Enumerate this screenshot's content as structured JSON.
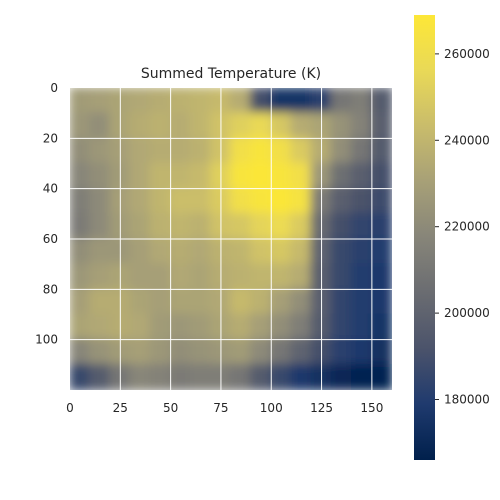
{
  "chart_data": {
    "type": "heatmap",
    "title": "Summed Temperature (K)",
    "xlabel": "",
    "ylabel": "",
    "colormap": "cividis",
    "grid": true,
    "grid_color": "#ffffff",
    "x_range": [
      0,
      160
    ],
    "y_range": [
      0,
      120
    ],
    "y_inverted": true,
    "x_ticks": [
      0,
      25,
      50,
      75,
      100,
      125,
      150
    ],
    "y_ticks": [
      0,
      20,
      40,
      60,
      80,
      100
    ],
    "colorbar": {
      "range": [
        166000,
        269000
      ],
      "ticks": [
        180000,
        200000,
        220000,
        240000,
        260000
      ],
      "tick_labels": [
        "180000",
        "200000",
        "220000",
        "240000",
        "260000"
      ],
      "placement": "right"
    },
    "grid_resolution": {
      "cols": 16,
      "rows": 12,
      "cell_width": 10,
      "cell_height": 10
    },
    "values": [
      [
        228000,
        230000,
        232000,
        234000,
        236000,
        238000,
        240000,
        242000,
        236000,
        190000,
        176000,
        176000,
        182000,
        210000,
        214000,
        196000
      ],
      [
        226000,
        222000,
        232000,
        236000,
        238000,
        236000,
        240000,
        246000,
        252000,
        256000,
        248000,
        236000,
        232000,
        224000,
        216000,
        198000
      ],
      [
        222000,
        226000,
        230000,
        234000,
        236000,
        236000,
        238000,
        246000,
        262000,
        266000,
        262000,
        250000,
        236000,
        222000,
        210000,
        196000
      ],
      [
        218000,
        222000,
        228000,
        234000,
        240000,
        240000,
        242000,
        252000,
        266000,
        268000,
        266000,
        262000,
        226000,
        206000,
        198000,
        190000
      ],
      [
        214000,
        220000,
        230000,
        234000,
        240000,
        244000,
        244000,
        250000,
        262000,
        266000,
        268000,
        264000,
        212000,
        198000,
        192000,
        188000
      ],
      [
        212000,
        220000,
        228000,
        232000,
        238000,
        240000,
        238000,
        246000,
        248000,
        254000,
        258000,
        250000,
        204000,
        190000,
        184000,
        182000
      ],
      [
        222000,
        226000,
        226000,
        230000,
        234000,
        236000,
        234000,
        238000,
        240000,
        246000,
        248000,
        242000,
        200000,
        186000,
        182000,
        180000
      ],
      [
        226000,
        230000,
        232000,
        230000,
        230000,
        234000,
        232000,
        236000,
        238000,
        240000,
        240000,
        236000,
        198000,
        186000,
        180000,
        178000
      ],
      [
        230000,
        236000,
        236000,
        232000,
        230000,
        232000,
        232000,
        234000,
        242000,
        238000,
        230000,
        222000,
        198000,
        184000,
        180000,
        178000
      ],
      [
        232000,
        234000,
        236000,
        234000,
        228000,
        226000,
        228000,
        232000,
        236000,
        230000,
        222000,
        214000,
        196000,
        184000,
        180000,
        176000
      ],
      [
        218000,
        224000,
        228000,
        230000,
        226000,
        222000,
        224000,
        226000,
        228000,
        220000,
        210000,
        200000,
        190000,
        182000,
        178000,
        174000
      ],
      [
        186000,
        196000,
        210000,
        218000,
        216000,
        212000,
        214000,
        214000,
        210000,
        196000,
        186000,
        178000,
        174000,
        170000,
        168000,
        168000
      ]
    ]
  }
}
